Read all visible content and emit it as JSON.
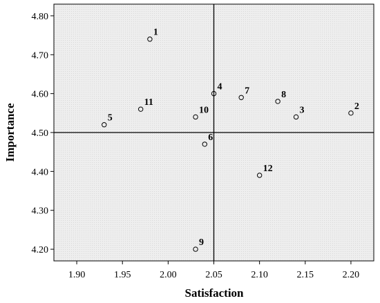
{
  "chart_data": {
    "type": "scatter",
    "title": "",
    "xlabel": "Satisfaction",
    "ylabel": "Importance",
    "xlim": [
      1.875,
      2.225
    ],
    "ylim": [
      4.17,
      4.83
    ],
    "x_ticks": [
      "1.90",
      "1.95",
      "2.00",
      "2.05",
      "2.10",
      "2.15",
      "2.20"
    ],
    "y_ticks": [
      "4.20",
      "4.30",
      "4.40",
      "4.50",
      "4.60",
      "4.70",
      "4.80"
    ],
    "reference_lines": {
      "x": 2.05,
      "y": 4.5
    },
    "grid": false,
    "background_color": "#ececec",
    "marker": "open-circle",
    "points": [
      {
        "label": "1",
        "x": 1.98,
        "y": 4.74
      },
      {
        "label": "2",
        "x": 2.2,
        "y": 4.55
      },
      {
        "label": "3",
        "x": 2.14,
        "y": 4.54
      },
      {
        "label": "4",
        "x": 2.05,
        "y": 4.6
      },
      {
        "label": "5",
        "x": 1.93,
        "y": 4.52
      },
      {
        "label": "6",
        "x": 2.04,
        "y": 4.47
      },
      {
        "label": "7",
        "x": 2.08,
        "y": 4.59
      },
      {
        "label": "8",
        "x": 2.12,
        "y": 4.58
      },
      {
        "label": "9",
        "x": 2.03,
        "y": 4.2
      },
      {
        "label": "10",
        "x": 2.03,
        "y": 4.54
      },
      {
        "label": "11",
        "x": 1.97,
        "y": 4.56
      },
      {
        "label": "12",
        "x": 2.1,
        "y": 4.39
      }
    ]
  }
}
